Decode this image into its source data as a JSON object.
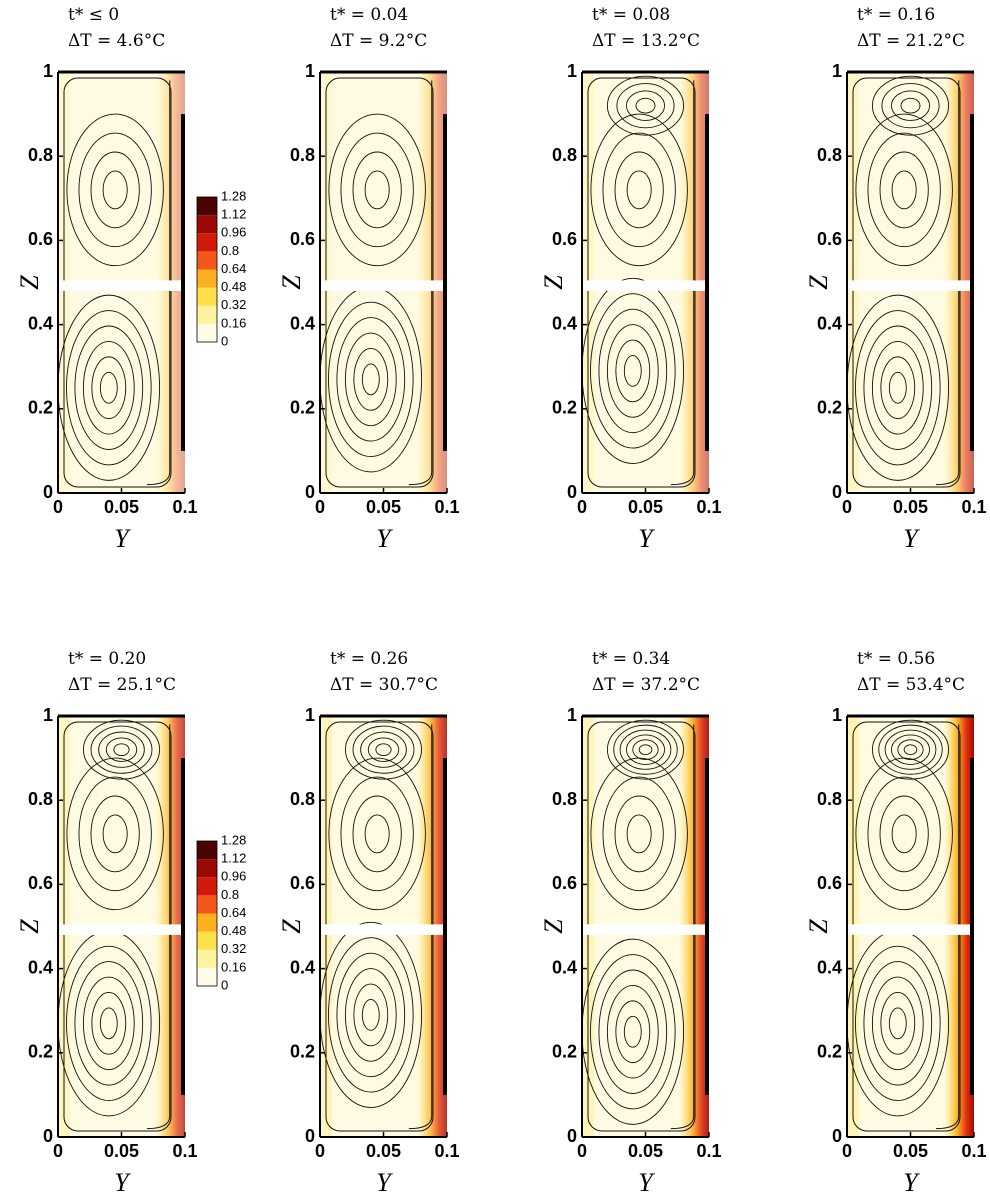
{
  "chart_data": [
    {
      "type": "streamline-contour",
      "title": "t* ≤ 0",
      "subtitle": "ΔT = 4.6°C",
      "xlabel": "Y",
      "ylabel": "Z",
      "xlim": [
        0,
        0.1
      ],
      "ylim": [
        0,
        1
      ],
      "xticks": [
        0,
        0.05,
        0.1
      ],
      "yticks": [
        0,
        0.2,
        0.4,
        0.6,
        0.8,
        1
      ],
      "colorbar": {
        "levels": [
          0,
          0.16,
          0.32,
          0.48,
          0.64,
          0.8,
          0.96,
          1.12,
          1.28
        ],
        "colors": [
          "#fffbe6",
          "#fff3a0",
          "#ffe04a",
          "#ffb020",
          "#f5561a",
          "#d01a0a",
          "#9a0a05",
          "#4a0502"
        ]
      }
    },
    {
      "type": "streamline-contour",
      "title": "t* = 0.04",
      "subtitle": "ΔT = 9.2°C",
      "xlabel": "Y",
      "ylabel": "Z",
      "xlim": [
        0,
        0.1
      ],
      "ylim": [
        0,
        1
      ],
      "xticks": [
        0,
        0.05,
        0.1
      ],
      "yticks": [
        0,
        0.2,
        0.4,
        0.6,
        0.8,
        1
      ]
    },
    {
      "type": "streamline-contour",
      "title": "t* = 0.08",
      "subtitle": "ΔT = 13.2°C",
      "xlabel": "Y",
      "ylabel": "Z",
      "xlim": [
        0,
        0.1
      ],
      "ylim": [
        0,
        1
      ],
      "xticks": [
        0,
        0.05,
        0.1
      ],
      "yticks": [
        0,
        0.2,
        0.4,
        0.6,
        0.8,
        1
      ]
    },
    {
      "type": "streamline-contour",
      "title": "t* = 0.16",
      "subtitle": "ΔT = 21.2°C",
      "xlabel": "Y",
      "ylabel": "Z",
      "xlim": [
        0,
        0.1
      ],
      "ylim": [
        0,
        1
      ],
      "xticks": [
        0,
        0.05,
        0.1
      ],
      "yticks": [
        0,
        0.2,
        0.4,
        0.6,
        0.8,
        1
      ]
    },
    {
      "type": "streamline-contour",
      "title": "t* = 0.20",
      "subtitle": "ΔT = 25.1°C",
      "xlabel": "Y",
      "ylabel": "Z",
      "xlim": [
        0,
        0.1
      ],
      "ylim": [
        0,
        1
      ],
      "xticks": [
        0,
        0.05,
        0.1
      ],
      "yticks": [
        0,
        0.2,
        0.4,
        0.6,
        0.8,
        1
      ],
      "colorbar": {
        "levels": [
          0,
          0.16,
          0.32,
          0.48,
          0.64,
          0.8,
          0.96,
          1.12,
          1.28
        ],
        "colors": [
          "#fffbe6",
          "#fff3a0",
          "#ffe04a",
          "#ffb020",
          "#f5561a",
          "#d01a0a",
          "#9a0a05",
          "#4a0502"
        ]
      }
    },
    {
      "type": "streamline-contour",
      "title": "t* = 0.26",
      "subtitle": "ΔT = 30.7°C",
      "xlabel": "Y",
      "ylabel": "Z",
      "xlim": [
        0,
        0.1
      ],
      "ylim": [
        0,
        1
      ],
      "xticks": [
        0,
        0.05,
        0.1
      ],
      "yticks": [
        0,
        0.2,
        0.4,
        0.6,
        0.8,
        1
      ]
    },
    {
      "type": "streamline-contour",
      "title": "t* = 0.34",
      "subtitle": "ΔT = 37.2°C",
      "xlabel": "Y",
      "ylabel": "Z",
      "xlim": [
        0,
        0.1
      ],
      "ylim": [
        0,
        1
      ],
      "xticks": [
        0,
        0.05,
        0.1
      ],
      "yticks": [
        0,
        0.2,
        0.4,
        0.6,
        0.8,
        1
      ]
    },
    {
      "type": "streamline-contour",
      "title": "t* = 0.56",
      "subtitle": "ΔT = 53.4°C",
      "xlabel": "Y",
      "ylabel": "Z",
      "xlim": [
        0,
        0.1
      ],
      "ylim": [
        0,
        1
      ],
      "xticks": [
        0,
        0.05,
        0.1
      ],
      "yticks": [
        0,
        0.2,
        0.4,
        0.6,
        0.8,
        1
      ]
    }
  ]
}
